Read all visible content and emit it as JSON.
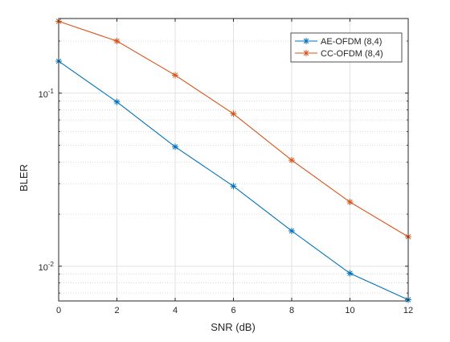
{
  "chart_data": {
    "type": "line",
    "title": "",
    "xlabel": "SNR (dB)",
    "ylabel": "BLER",
    "x": [
      0,
      2,
      4,
      6,
      8,
      10,
      12
    ],
    "xlim": [
      0,
      12
    ],
    "ylim": [
      0.0063,
      0.27
    ],
    "yscale": "log",
    "grid": true,
    "minor_grid": true,
    "legend_position": "top-right",
    "x_ticks": [
      "0",
      "2",
      "4",
      "6",
      "8",
      "10",
      "12"
    ],
    "y_tick_values": [
      0.01,
      0.1
    ],
    "y_ticks": [
      {
        "base": "10",
        "exp": "-2"
      },
      {
        "base": "10",
        "exp": "-1"
      }
    ],
    "series": [
      {
        "name": "AE-OFDM (8,4)",
        "color": "#0072BD",
        "marker": "asterisk",
        "values": [
          0.153,
          0.089,
          0.049,
          0.029,
          0.016,
          0.0091,
          0.0064
        ]
      },
      {
        "name": "CC-OFDM (8,4)",
        "color": "#D95319",
        "marker": "asterisk",
        "values": [
          0.26,
          0.2,
          0.127,
          0.076,
          0.041,
          0.0235,
          0.0148
        ]
      }
    ]
  }
}
